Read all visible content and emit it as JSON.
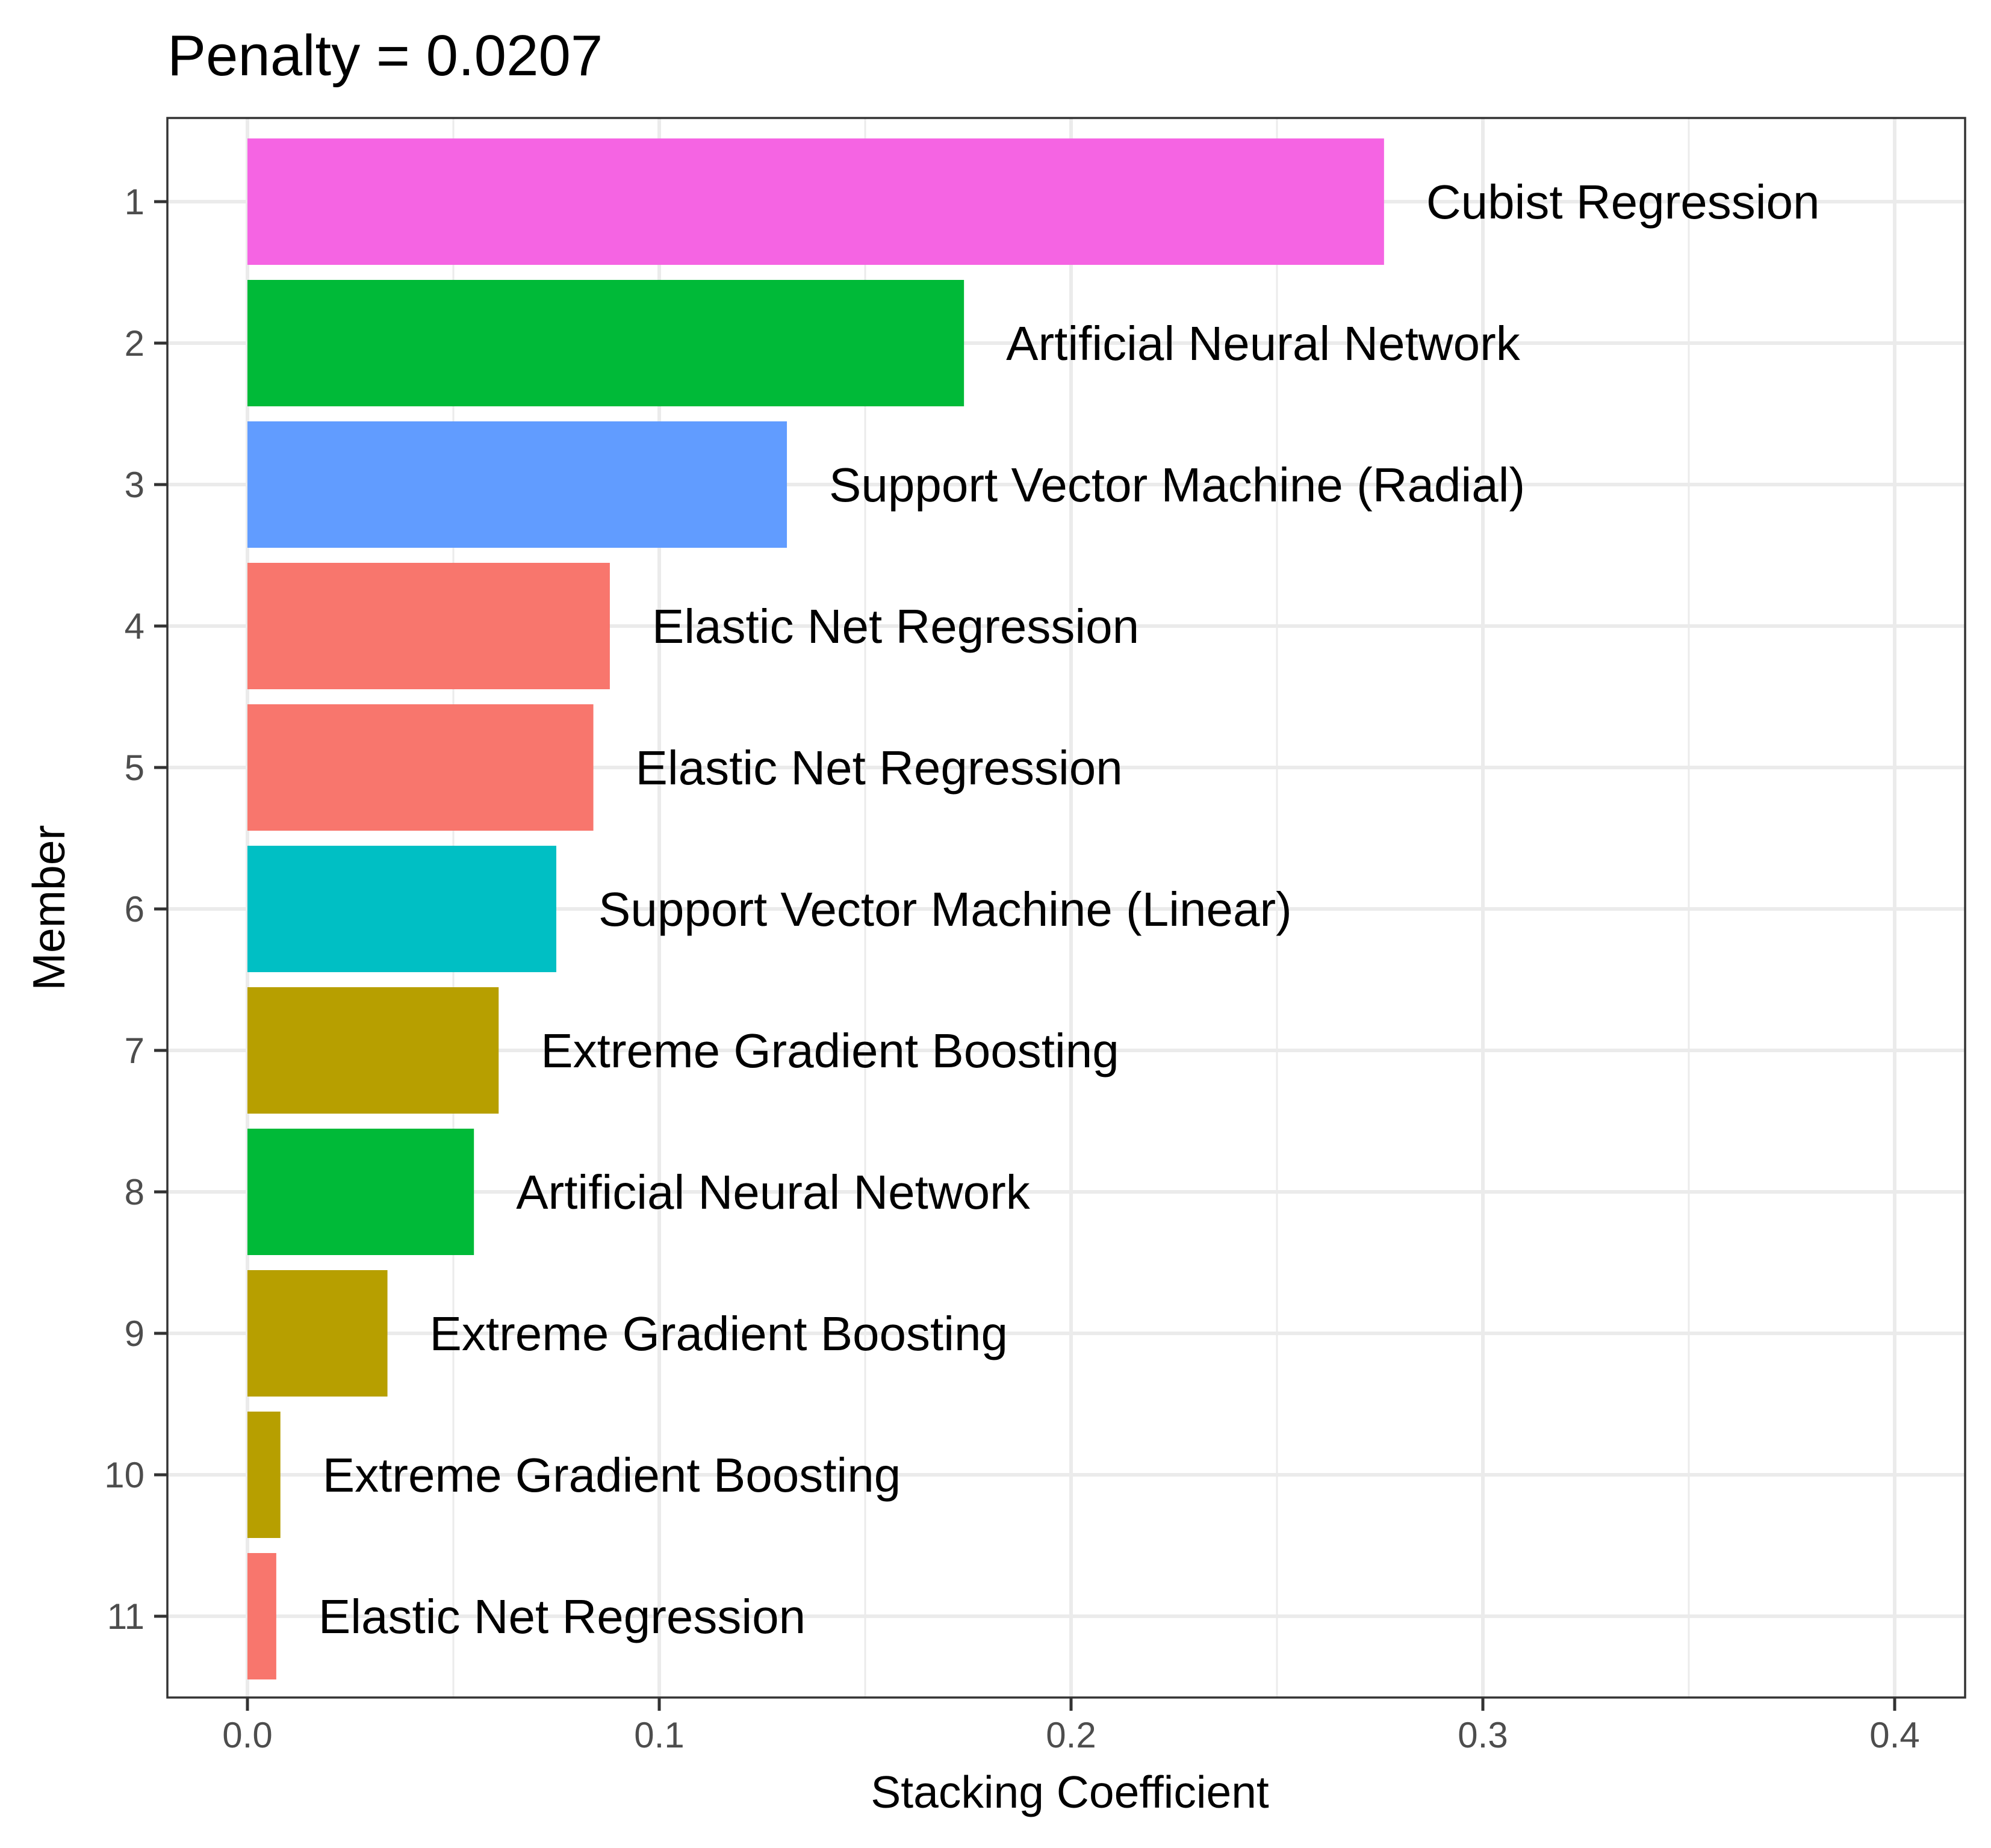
{
  "chart_data": {
    "type": "bar",
    "orientation": "horizontal",
    "title": "Penalty = 0.0207",
    "xlabel": "Stacking Coefficient",
    "ylabel": "Member",
    "xlim": [
      0,
      0.4
    ],
    "x_ticks": [
      "0.0",
      "0.1",
      "0.2",
      "0.3",
      "0.4"
    ],
    "grid": true,
    "legend": "none",
    "categories": [
      "1",
      "2",
      "3",
      "4",
      "5",
      "6",
      "7",
      "8",
      "9",
      "10",
      "11"
    ],
    "values": [
      0.276,
      0.174,
      0.131,
      0.088,
      0.084,
      0.075,
      0.061,
      0.055,
      0.034,
      0.008,
      0.007
    ],
    "labels": [
      "Cubist Regression",
      "Artificial Neural Network",
      "Support Vector Machine (Radial)",
      "Elastic Net Regression",
      "Elastic Net Regression",
      "Support Vector Machine (Linear)",
      "Extreme Gradient Boosting",
      "Artificial Neural Network",
      "Extreme Gradient Boosting",
      "Extreme Gradient Boosting",
      "Elastic Net Regression"
    ],
    "colors": [
      "#F564E3",
      "#00BA38",
      "#619CFF",
      "#F8766D",
      "#F8766D",
      "#00BFC4",
      "#B79F00",
      "#00BA38",
      "#B79F00",
      "#B79F00",
      "#F8766D"
    ]
  }
}
